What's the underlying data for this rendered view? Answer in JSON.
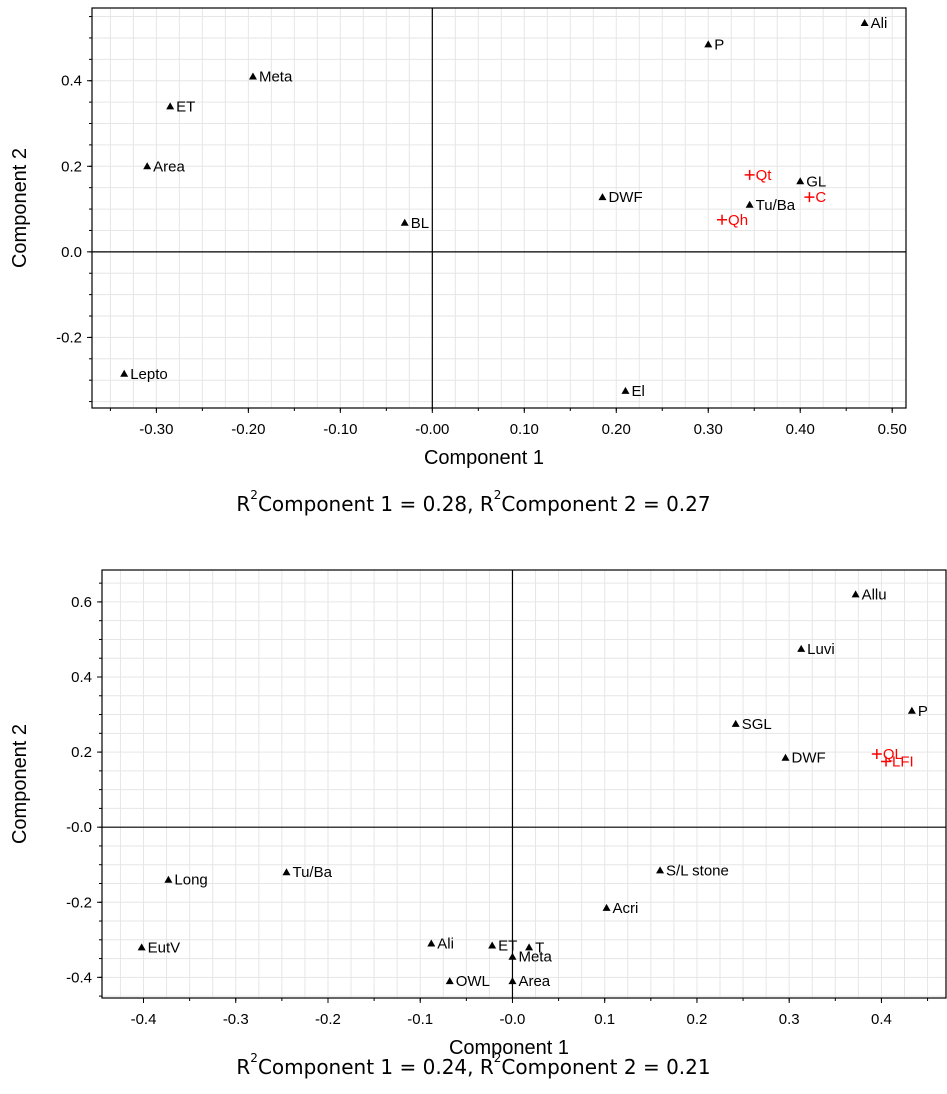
{
  "chart_data": [
    {
      "type": "scatter",
      "xlabel": "Component 1",
      "ylabel": "Component 2",
      "caption": {
        "r": "R",
        "sup": "2",
        "part1": "Component 1 = 0.28, ",
        "part2": "Component 2 = 0.27"
      },
      "xlim": [
        -0.37,
        0.515
      ],
      "ylim": [
        -0.365,
        0.57
      ],
      "xticks": [
        -0.3,
        -0.2,
        -0.1,
        0.0,
        0.1,
        0.2,
        0.3,
        0.4,
        0.5
      ],
      "xtick_labels": [
        "-0.30",
        "-0.20",
        "-0.10",
        "-0.00",
        "0.10",
        "0.20",
        "0.30",
        "0.40",
        "0.50"
      ],
      "yticks": [
        -0.2,
        0.0,
        0.2,
        0.4
      ],
      "ytick_labels": [
        "-0.2",
        "0.0",
        "0.2",
        "0.4"
      ],
      "minor_x_step": 0.025,
      "minor_y_step": 0.05,
      "grid": true,
      "series": [
        {
          "color": "#000000",
          "marker": "triangle",
          "points": [
            {
              "label": "Ali",
              "x": 0.47,
              "y": 0.535
            },
            {
              "label": "P",
              "x": 0.3,
              "y": 0.485
            },
            {
              "label": "Meta",
              "x": -0.195,
              "y": 0.41
            },
            {
              "label": "ET",
              "x": -0.285,
              "y": 0.34
            },
            {
              "label": "Area",
              "x": -0.31,
              "y": 0.2
            },
            {
              "label": "GL",
              "x": 0.4,
              "y": 0.165
            },
            {
              "label": "DWF",
              "x": 0.185,
              "y": 0.128
            },
            {
              "label": "Tu/Ba",
              "x": 0.345,
              "y": 0.11
            },
            {
              "label": "BL",
              "x": -0.03,
              "y": 0.068
            },
            {
              "label": "Lepto",
              "x": -0.335,
              "y": -0.285
            },
            {
              "label": "El",
              "x": 0.21,
              "y": -0.325
            }
          ]
        },
        {
          "color": "#ff0000",
          "marker": "plus",
          "points": [
            {
              "label": "Qt",
              "x": 0.345,
              "y": 0.18
            },
            {
              "label": "C",
              "x": 0.41,
              "y": 0.128
            },
            {
              "label": "Qh",
              "x": 0.315,
              "y": 0.075
            }
          ]
        }
      ]
    },
    {
      "type": "scatter",
      "xlabel": "Component 1",
      "ylabel": "Component 2",
      "caption": {
        "r": "R",
        "sup": "2",
        "part1": "Component 1 = 0.24, ",
        "part2": "Component 2 = 0.21"
      },
      "xlim": [
        -0.445,
        0.47
      ],
      "ylim": [
        -0.455,
        0.685
      ],
      "xticks": [
        -0.4,
        -0.3,
        -0.2,
        -0.1,
        0.0,
        0.1,
        0.2,
        0.3,
        0.4
      ],
      "xtick_labels": [
        "-0.4",
        "-0.3",
        "-0.2",
        "-0.1",
        "-0.0",
        "0.1",
        "0.2",
        "0.3",
        "0.4"
      ],
      "yticks": [
        -0.4,
        -0.2,
        0.0,
        0.2,
        0.4,
        0.6
      ],
      "ytick_labels": [
        "-0.4",
        "-0.2",
        "-0.0",
        "0.2",
        "0.4",
        "0.6"
      ],
      "minor_x_step": 0.025,
      "minor_y_step": 0.05,
      "grid": true,
      "series": [
        {
          "color": "#000000",
          "marker": "triangle",
          "points": [
            {
              "label": "Allu",
              "x": 0.372,
              "y": 0.62
            },
            {
              "label": "Luvi",
              "x": 0.313,
              "y": 0.475
            },
            {
              "label": "P",
              "x": 0.433,
              "y": 0.31
            },
            {
              "label": "SGL",
              "x": 0.242,
              "y": 0.275
            },
            {
              "label": "DWF",
              "x": 0.296,
              "y": 0.185
            },
            {
              "label": "S/L stone",
              "x": 0.16,
              "y": -0.115
            },
            {
              "label": "Acri",
              "x": 0.102,
              "y": -0.215
            },
            {
              "label": "Long",
              "x": -0.373,
              "y": -0.14
            },
            {
              "label": "Tu/Ba",
              "x": -0.245,
              "y": -0.12
            },
            {
              "label": "EutV",
              "x": -0.402,
              "y": -0.32
            },
            {
              "label": "Ali",
              "x": -0.088,
              "y": -0.31
            },
            {
              "label": "ET",
              "x": -0.022,
              "y": -0.315
            },
            {
              "label": "T",
              "x": 0.018,
              "y": -0.32
            },
            {
              "label": "Meta",
              "x": 0.0,
              "y": -0.345
            },
            {
              "label": "OWL",
              "x": -0.068,
              "y": -0.41
            },
            {
              "label": "Area",
              "x": 0.0,
              "y": -0.41
            }
          ]
        },
        {
          "color": "#ff0000",
          "marker": "plus",
          "points": [
            {
              "label": "QL",
              "x": 0.395,
              "y": 0.195
            },
            {
              "label": "LFI",
              "x": 0.405,
              "y": 0.175
            }
          ]
        }
      ]
    }
  ]
}
